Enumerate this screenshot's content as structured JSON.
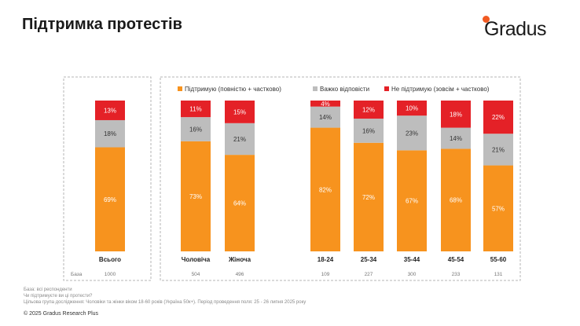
{
  "header": {
    "title": "Підтримка протестів",
    "brand": "Gradus",
    "brand_color": "#f15a22"
  },
  "chart_data": {
    "type": "bar",
    "stacked": true,
    "percent": true,
    "title": "Підтримка протестів",
    "categories": [
      "Всього",
      "Чоловіча",
      "Жіноча",
      "18-24",
      "25-34",
      "35-44",
      "45-54",
      "55-60"
    ],
    "groups": [
      {
        "name": "total",
        "categories": [
          "Всього"
        ]
      },
      {
        "name": "gender",
        "categories": [
          "Чоловіча",
          "Жіноча"
        ]
      },
      {
        "name": "age",
        "categories": [
          "18-24",
          "25-34",
          "35-44",
          "45-54",
          "55-60"
        ]
      }
    ],
    "series": [
      {
        "name": "Підтримую (повністю + частково)",
        "color": "#f7931e",
        "values": [
          69,
          73,
          64,
          82,
          72,
          67,
          68,
          57
        ]
      },
      {
        "name": "Важко відповісти",
        "color": "#bdbdbd",
        "values": [
          18,
          16,
          21,
          14,
          16,
          23,
          14,
          21
        ]
      },
      {
        "name": "Не підтримую (зовсім + частково)",
        "color": "#e42127",
        "values": [
          13,
          11,
          15,
          4,
          12,
          10,
          18,
          22
        ]
      }
    ],
    "data_labels": [
      [
        "69%",
        "73%",
        "64%",
        "82%",
        "72%",
        "67%",
        "68%",
        "57%"
      ],
      [
        "18%",
        "16%",
        "21%",
        "14%",
        "16%",
        "23%",
        "14%",
        "21%"
      ],
      [
        "13%",
        "11%",
        "15%",
        "4%",
        "12%",
        "10%",
        "18%",
        "22%"
      ]
    ],
    "base_label": "База",
    "base_values": [
      "1000",
      "504",
      "496",
      "109",
      "227",
      "300",
      "233",
      "131"
    ],
    "ylim": [
      0,
      100
    ],
    "legend_position": "top"
  },
  "footer": {
    "base_note": "База: всі респонденти",
    "question": "Чи підтримуєте ви ці протести?",
    "target": "Цільова група дослідження: Чоловіки та жінки віком 18-60 років (Україна 50к+). Період проведення поля: 25 - 26 липня 2025 року",
    "copyright": "© 2025 Gradus Research Plus"
  }
}
